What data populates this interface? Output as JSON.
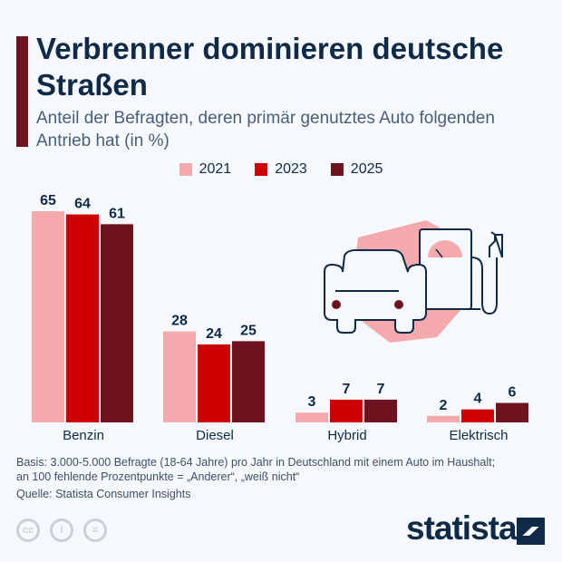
{
  "title": "Verbrenner dominieren deutsche Straßen",
  "subtitle": "Anteil der Befragten, deren primär genutztes Auto folgenden Antrieb hat (in %)",
  "footnote_line1": "Basis: 3.000-5.000 Befragte (18-64 Jahre) pro Jahr in Deutschland mit einem Auto im Haushalt;",
  "footnote_line2": "an 100 fehlende Prozentpunkte = „Anderer“, „weiß nicht“",
  "source": "Quelle: Statista Consumer Insights",
  "logo": "statista",
  "license_icons": [
    "cc-icon",
    "by-icon",
    "nd-icon"
  ],
  "chart_data": {
    "type": "bar",
    "categories": [
      "Benzin",
      "Diesel",
      "Hybrid",
      "Elektrisch"
    ],
    "series": [
      {
        "name": "2021",
        "color": "#f4a9ad",
        "values": [
          65,
          28,
          3,
          2
        ]
      },
      {
        "name": "2023",
        "color": "#cc0000",
        "values": [
          64,
          24,
          7,
          4
        ]
      },
      {
        "name": "2025",
        "color": "#6e1420",
        "values": [
          61,
          25,
          7,
          6
        ]
      }
    ],
    "legend": "top-center",
    "grid": false,
    "ylim": [
      0,
      65
    ]
  }
}
